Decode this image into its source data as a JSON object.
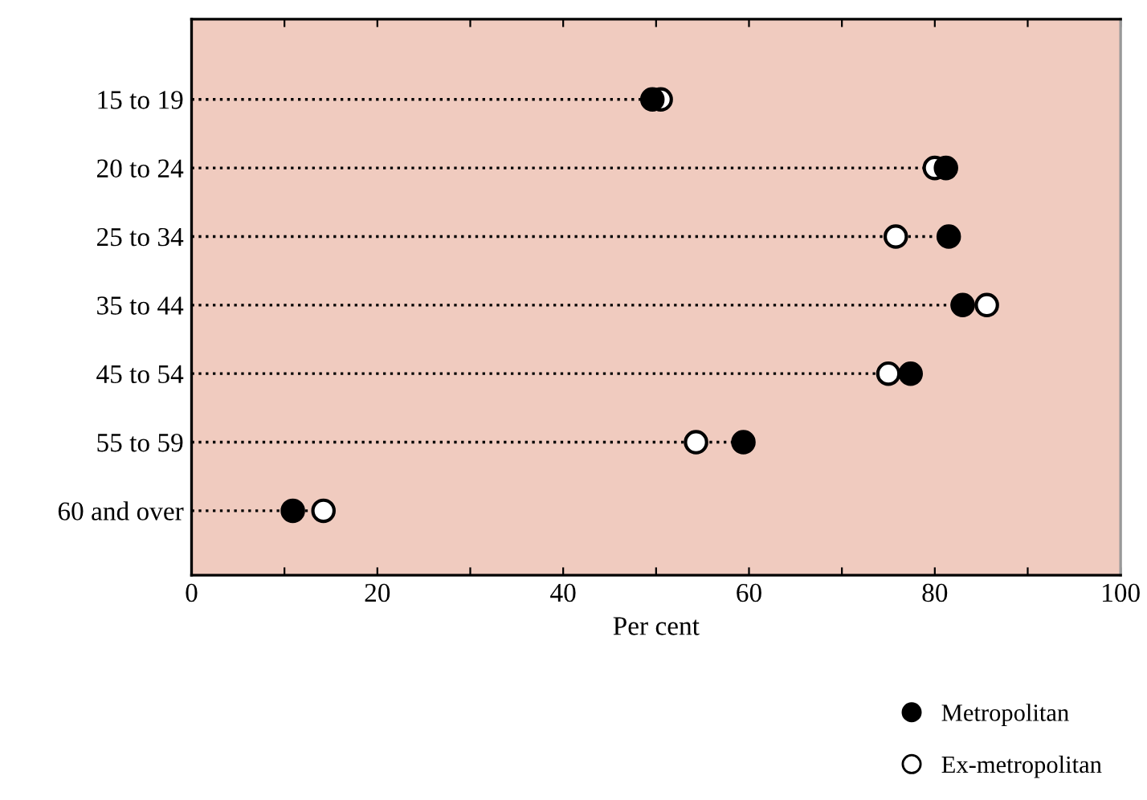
{
  "chart_data": {
    "type": "lollipop",
    "orientation": "horizontal",
    "xlabel": "Per cent",
    "categories": [
      "15 to 19",
      "20 to 24",
      "25 to 34",
      "35 to 44",
      "45 to 54",
      "55 to 59",
      "60 and over"
    ],
    "series": [
      {
        "name": "Metropolitan",
        "color": "#000000",
        "values": [
          49.6,
          81.2,
          81.5,
          83.0,
          77.4,
          59.4,
          10.9
        ]
      },
      {
        "name": "Ex-metropolitan",
        "color": "#ffffff",
        "values": [
          50.5,
          80.0,
          75.8,
          85.6,
          75.0,
          54.3,
          14.2
        ]
      }
    ],
    "xlim": [
      0,
      100
    ],
    "xticks": [
      0,
      {
        "value": 10,
        "label": null
      },
      20,
      {
        "value": 30,
        "label": null
      },
      40,
      {
        "value": 50,
        "label": null
      },
      60,
      {
        "value": 70,
        "label": null
      },
      80,
      {
        "value": 90,
        "label": null
      },
      100
    ],
    "marker": "circle",
    "line_style": "dotted",
    "grid": false,
    "legend": "bottom right"
  }
}
